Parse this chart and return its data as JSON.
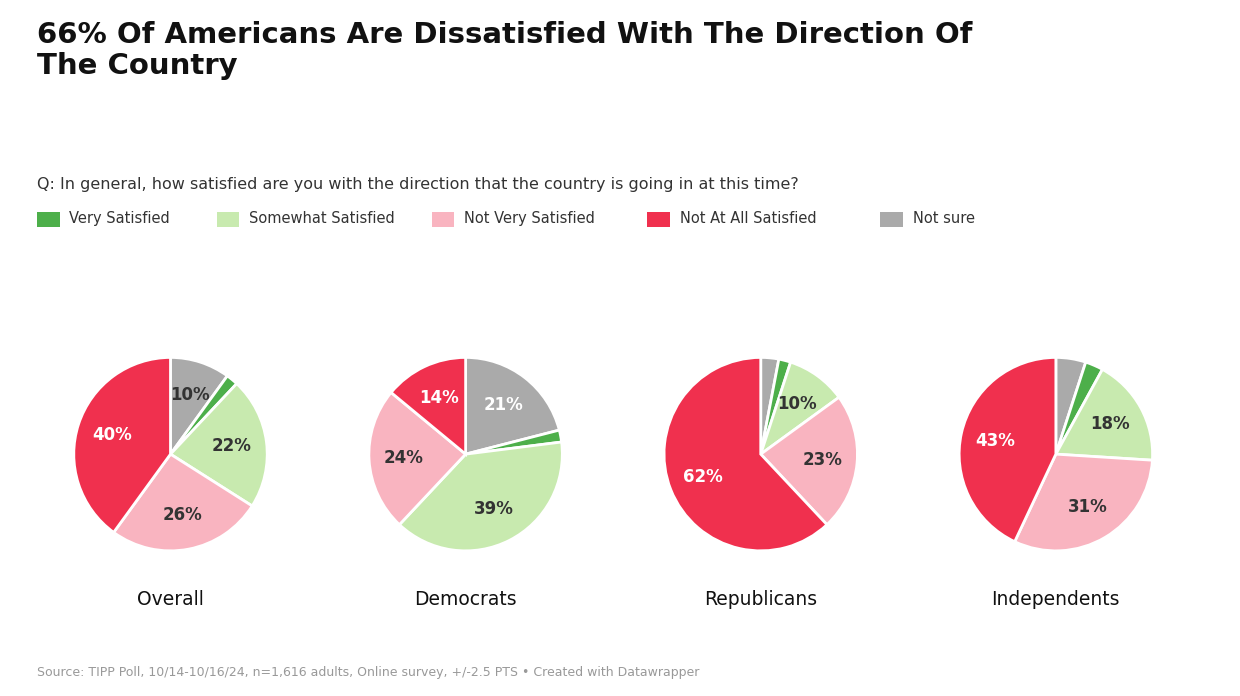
{
  "title": "66% Of Americans Are Dissatisfied With The Direction Of\nThe Country",
  "subtitle": "Q: In general, how satisfied are you with the direction that the country is going in at this time?",
  "source": "Source: TIPP Poll, 10/14-10/16/24, n=1,616 adults, Online survey, +/-2.5 PTS • Created with Datawrapper",
  "categories": [
    "Overall",
    "Democrats",
    "Republicans",
    "Independents"
  ],
  "legend_labels": [
    "Very Satisfied",
    "Somewhat Satisfied",
    "Not Very Satisfied",
    "Not At All Satisfied",
    "Not sure"
  ],
  "colors": {
    "Very Satisfied": "#4daf4a",
    "Somewhat Satisfied": "#c8eaaf",
    "Not Very Satisfied": "#f9b4c0",
    "Not At All Satisfied": "#f0304e",
    "Not sure": "#aaaaaa"
  },
  "data": {
    "Overall": [
      2,
      22,
      26,
      40,
      10
    ],
    "Democrats": [
      2,
      39,
      24,
      14,
      21
    ],
    "Republicans": [
      2,
      10,
      23,
      62,
      3
    ],
    "Independents": [
      3,
      18,
      31,
      43,
      5
    ]
  },
  "labels": {
    "Overall": [
      "",
      "22%",
      "26%",
      "40%",
      "10%"
    ],
    "Democrats": [
      "",
      "39%",
      "24%",
      "14%",
      "21%"
    ],
    "Republicans": [
      "",
      "10%",
      "23%",
      "62%",
      ""
    ],
    "Independents": [
      "",
      "18%",
      "31%",
      "43%",
      ""
    ]
  },
  "label_colors": {
    "Overall": [
      "white",
      "#333333",
      "#333333",
      "white",
      "#333333"
    ],
    "Democrats": [
      "white",
      "#333333",
      "#333333",
      "white",
      "white"
    ],
    "Republicans": [
      "white",
      "#333333",
      "#333333",
      "white",
      ""
    ],
    "Independents": [
      "white",
      "#333333",
      "#333333",
      "white",
      ""
    ]
  },
  "background_color": "#ffffff",
  "order": [
    "Not sure",
    "Very Satisfied",
    "Somewhat Satisfied",
    "Not Very Satisfied",
    "Not At All Satisfied"
  ]
}
